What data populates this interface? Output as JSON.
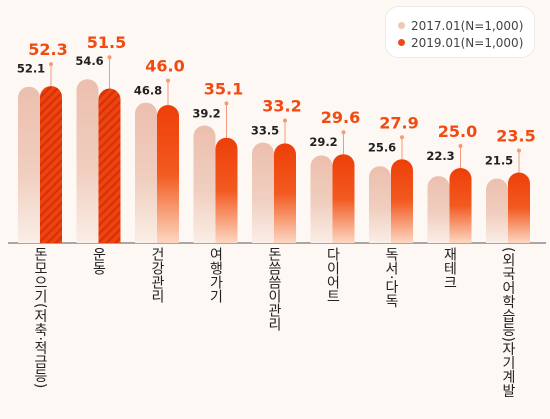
{
  "chart_data": {
    "type": "bar",
    "categories": [
      "돈모으기(저축·적금등)",
      "운동",
      "건강관리",
      "여행가기",
      "돈씀씀이관리",
      "다이어트",
      "독서·다독",
      "재테크",
      "(외국어학습등)자기계발"
    ],
    "series": [
      {
        "name": "2017.01(N=1,000)",
        "values": [
          52.1,
          54.6,
          46.8,
          39.2,
          33.5,
          29.2,
          25.6,
          22.3,
          21.5
        ],
        "color": "#eab9a8"
      },
      {
        "name": "2019.01(N=1,000)",
        "values": [
          52.3,
          51.5,
          46.0,
          35.1,
          33.2,
          29.6,
          27.9,
          25.0,
          23.5
        ],
        "color": "#f24a10"
      }
    ],
    "value_labels": {
      "2017.01(N=1,000)": [
        "52.1",
        "54.6",
        "46.8",
        "39.2",
        "33.5",
        "29.2",
        "25.6",
        "22.3",
        "21.5"
      ],
      "2019.01(N=1,000)": [
        "52.3",
        "51.5",
        "46.0",
        "35.1",
        "33.2",
        "29.6",
        "27.9",
        "25.0",
        "23.5"
      ]
    },
    "label_color": "#f24a10",
    "grid": false,
    "legend_position": "top-right"
  }
}
